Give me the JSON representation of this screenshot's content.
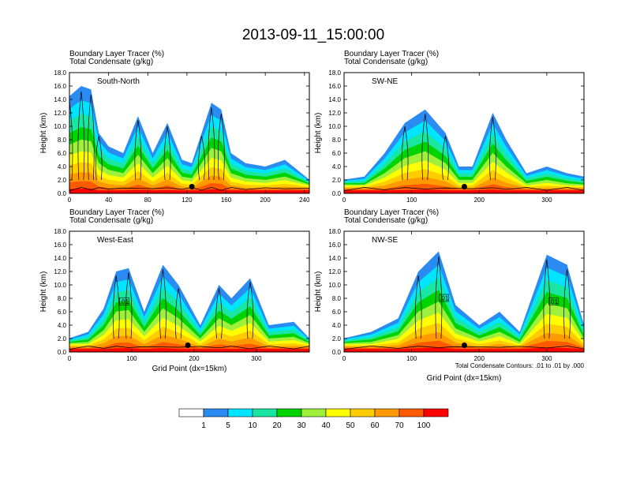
{
  "page_title": "2013-09-11_15:00:00",
  "palette": [
    "#ffffff",
    "#2a8cf2",
    "#00e5ff",
    "#19e6a0",
    "#00d400",
    "#9ef03c",
    "#ffff00",
    "#ffcc00",
    "#ff9900",
    "#ff5a00",
    "#ff0000"
  ],
  "contour_color": "#000000",
  "chart_data": [
    {
      "type": "heatmap",
      "line1": "Boundary Layer Tracer   (%)",
      "line2": "Total Condensate   (g/kg)",
      "panel_label": "South-North",
      "ylabel": "Height (km)",
      "xlabel": "",
      "xlim": [
        0,
        245
      ],
      "ylim": [
        0,
        18
      ],
      "xticks": [
        0,
        40,
        80,
        120,
        160,
        200,
        240
      ],
      "yticks": [
        0,
        2,
        4,
        6,
        8,
        10,
        12,
        14,
        16,
        18
      ],
      "ytick_labels": [
        "0.0",
        "2.0",
        "4.0",
        "6.0",
        "8.0",
        "10.0",
        "12.0",
        "14.0",
        "16.0",
        "18.0"
      ],
      "contour_labels": [],
      "dot_x": 125,
      "tracer_columns": [
        {
          "x": 0,
          "top": 14.5
        },
        {
          "x": 12,
          "top": 16.0
        },
        {
          "x": 22,
          "top": 15.5
        },
        {
          "x": 30,
          "top": 9.0
        },
        {
          "x": 40,
          "top": 7.0
        },
        {
          "x": 55,
          "top": 6.0
        },
        {
          "x": 70,
          "top": 11.5
        },
        {
          "x": 85,
          "top": 6.0
        },
        {
          "x": 100,
          "top": 10.5
        },
        {
          "x": 115,
          "top": 5.0
        },
        {
          "x": 125,
          "top": 4.5
        },
        {
          "x": 135,
          "top": 9.0
        },
        {
          "x": 145,
          "top": 13.5
        },
        {
          "x": 155,
          "top": 12.5
        },
        {
          "x": 165,
          "top": 6.0
        },
        {
          "x": 180,
          "top": 4.5
        },
        {
          "x": 200,
          "top": 4.0
        },
        {
          "x": 220,
          "top": 5.0
        },
        {
          "x": 245,
          "top": 1.5
        }
      ]
    },
    {
      "type": "heatmap",
      "line1": "Boundary Layer Tracer   (%)",
      "line2": "Total Condensate   (g/kg)",
      "panel_label": "SW-NE",
      "ylabel": "Height (km)",
      "xlabel": "",
      "xlim": [
        0,
        355
      ],
      "ylim": [
        0,
        18
      ],
      "xticks": [
        0,
        100,
        200,
        300
      ],
      "yticks": [
        0,
        2,
        4,
        6,
        8,
        10,
        12,
        14,
        16,
        18
      ],
      "ytick_labels": [
        "0.0",
        "2.0",
        "4.0",
        "6.0",
        "8.0",
        "10.0",
        "12.0",
        "14.0",
        "16.0",
        "18.0"
      ],
      "contour_labels": [],
      "dot_x": 178,
      "tracer_columns": [
        {
          "x": 0,
          "top": 1.5
        },
        {
          "x": 30,
          "top": 2.5
        },
        {
          "x": 60,
          "top": 6.0
        },
        {
          "x": 90,
          "top": 10.5
        },
        {
          "x": 120,
          "top": 12.5
        },
        {
          "x": 150,
          "top": 9.0
        },
        {
          "x": 170,
          "top": 4.0
        },
        {
          "x": 190,
          "top": 4.0
        },
        {
          "x": 220,
          "top": 12.0
        },
        {
          "x": 240,
          "top": 8.0
        },
        {
          "x": 270,
          "top": 3.0
        },
        {
          "x": 300,
          "top": 4.0
        },
        {
          "x": 330,
          "top": 3.0
        },
        {
          "x": 355,
          "top": 2.5
        }
      ]
    },
    {
      "type": "heatmap",
      "line1": "Boundary Layer Tracer   (%)",
      "line2": "Total Condensate   (g/kg)",
      "panel_label": "West-East",
      "ylabel": "Height (km)",
      "xlabel": "Grid Point (dx=15km)",
      "xlim": [
        0,
        385
      ],
      "ylim": [
        0,
        18
      ],
      "xticks": [
        0,
        100,
        200,
        300
      ],
      "yticks": [
        0,
        2,
        4,
        6,
        8,
        10,
        12,
        14,
        16,
        18
      ],
      "ytick_labels": [
        "0.0",
        "2.0",
        "4.0",
        "6.0",
        "8.0",
        "10.0",
        "12.0",
        "14.0",
        "16.0",
        "18.0"
      ],
      "contour_labels": [
        {
          "x": 88,
          "y": 7.5,
          "text": ".01"
        }
      ],
      "dot_x": 190,
      "tracer_columns": [
        {
          "x": 0,
          "top": 2.0
        },
        {
          "x": 30,
          "top": 3.0
        },
        {
          "x": 55,
          "top": 6.5
        },
        {
          "x": 75,
          "top": 12.0
        },
        {
          "x": 95,
          "top": 12.5
        },
        {
          "x": 120,
          "top": 6.0
        },
        {
          "x": 150,
          "top": 13.0
        },
        {
          "x": 175,
          "top": 10.0
        },
        {
          "x": 210,
          "top": 4.0
        },
        {
          "x": 240,
          "top": 10.0
        },
        {
          "x": 260,
          "top": 8.0
        },
        {
          "x": 290,
          "top": 11.0
        },
        {
          "x": 320,
          "top": 4.0
        },
        {
          "x": 360,
          "top": 4.5
        },
        {
          "x": 385,
          "top": 1.5
        }
      ]
    },
    {
      "type": "heatmap",
      "line1": "Boundary Layer Tracer   (%)",
      "line2": "Total Condensate   (g/kg)",
      "panel_label": "NW-SE",
      "ylabel": "Height (km)",
      "xlabel": "Grid Point (dx=15km)",
      "xlim": [
        0,
        355
      ],
      "ylim": [
        0,
        18
      ],
      "xticks": [
        0,
        100,
        200,
        300
      ],
      "yticks": [
        0,
        2,
        4,
        6,
        8,
        10,
        12,
        14,
        16,
        18
      ],
      "ytick_labels": [
        "0.0",
        "2.0",
        "4.0",
        "6.0",
        "8.0",
        "10.0",
        "12.0",
        "14.0",
        "16.0",
        "18.0"
      ],
      "contour_labels": [
        {
          "x": 148,
          "y": 8.0,
          "text": ".01"
        },
        {
          "x": 310,
          "y": 7.5,
          "text": ".01"
        }
      ],
      "dot_x": 178,
      "note": "Total Condensate Contours: .01 to .01 by .000",
      "tracer_columns": [
        {
          "x": 0,
          "top": 2.0
        },
        {
          "x": 40,
          "top": 3.0
        },
        {
          "x": 80,
          "top": 5.0
        },
        {
          "x": 110,
          "top": 12.0
        },
        {
          "x": 140,
          "top": 15.0
        },
        {
          "x": 165,
          "top": 7.0
        },
        {
          "x": 200,
          "top": 4.0
        },
        {
          "x": 230,
          "top": 6.0
        },
        {
          "x": 260,
          "top": 3.0
        },
        {
          "x": 300,
          "top": 14.5
        },
        {
          "x": 330,
          "top": 13.0
        },
        {
          "x": 355,
          "top": 4.0
        }
      ]
    }
  ],
  "colorbar": {
    "labels": [
      "1",
      "5",
      "10",
      "20",
      "30",
      "40",
      "50",
      "60",
      "70",
      "100"
    ]
  }
}
